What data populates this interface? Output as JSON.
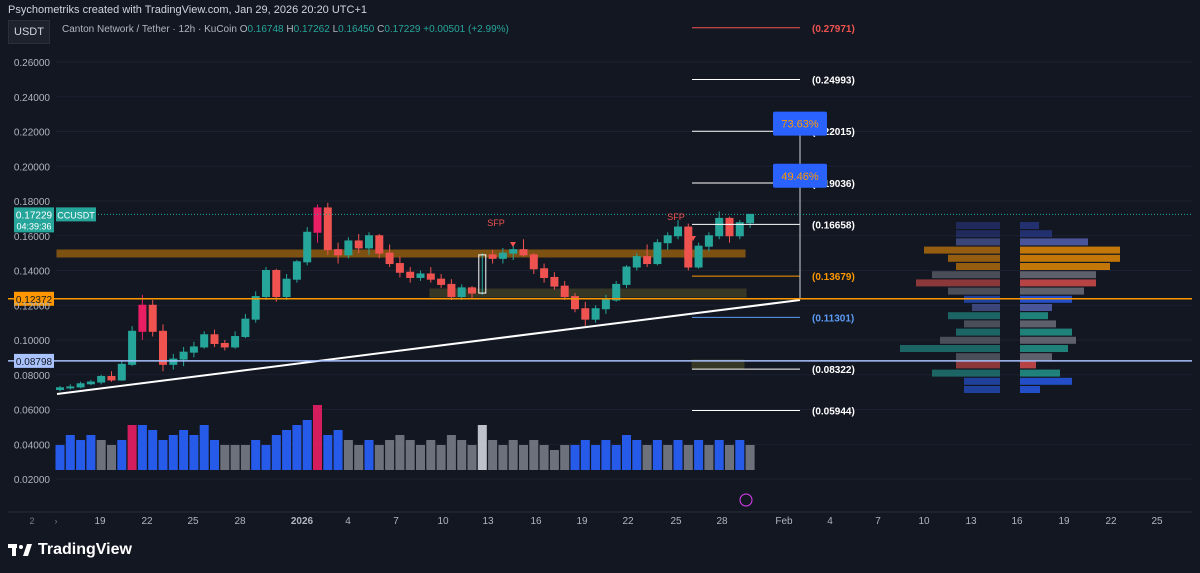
{
  "topbar": {
    "credit": "Psychometriks created with TradingView.com, Jan 29, 2026 20:20 UTC+1"
  },
  "symbol_tab": "USDT",
  "legend": {
    "name": "Canton Network / Tether · 12h · KuCoin",
    "o_label": "O",
    "o": "0.16748",
    "h_label": "H",
    "h": "0.17262",
    "l_label": "L",
    "l": "0.16450",
    "c_label": "C",
    "c": "0.17229",
    "change": "+0.00501 (+2.99%)"
  },
  "brand": "TradingView",
  "colors": {
    "up": "#26a69a",
    "down": "#ef5350",
    "volume_up": "#2962ff",
    "volume_down": "#787b86",
    "highlight": "#e91e63",
    "support": "#ff9800",
    "blue_line": "#a9c3ff"
  },
  "chart_data": {
    "type": "candlestick",
    "title": "",
    "ylim": [
      0.015,
      0.285
    ],
    "y_ticks": [
      "0.26000",
      "0.24000",
      "0.22000",
      "0.20000",
      "0.18000",
      "0.16000",
      "0.14000",
      "0.12000",
      "0.10000",
      "0.08000",
      "0.06000",
      "0.04000",
      "0.02000"
    ],
    "x_ticks": [
      "19",
      "22",
      "25",
      "28",
      "2026",
      "4",
      "7",
      "10",
      "13",
      "16",
      "19",
      "22",
      "25",
      "28",
      "Feb",
      "4",
      "7",
      "10",
      "13",
      "16",
      "19",
      "22",
      "25"
    ],
    "x_prefix": "2",
    "current_price": {
      "value": "0.17229",
      "symbol": "CCUSDT",
      "countdown": "04:39:36"
    },
    "price_levels": [
      {
        "value": "0.12372",
        "color": "#ff9800"
      },
      {
        "value": "0.08798",
        "color": "#a9c3ff"
      }
    ],
    "fib_levels": [
      {
        "label": "(0.27971)",
        "value": 0.27971,
        "color": "#ef5350"
      },
      {
        "label": "(0.24993)",
        "value": 0.24993,
        "color": "#ffffff"
      },
      {
        "label": "(0.22015)",
        "value": 0.22015,
        "color": "#ffffff"
      },
      {
        "label": "(0.19036)",
        "value": 0.19036,
        "color": "#ffffff"
      },
      {
        "label": "(0.16658)",
        "value": 0.16658,
        "color": "#ffffff"
      },
      {
        "label": "(0.13679)",
        "value": 0.13679,
        "color": "#ff9800"
      },
      {
        "label": "(0.11301)",
        "value": 0.11301,
        "color": "#5b9cf6"
      },
      {
        "label": "(0.08322)",
        "value": 0.08322,
        "color": "#ffffff"
      },
      {
        "label": "(0.05944)",
        "value": 0.05944,
        "color": "#ffffff"
      }
    ],
    "targets": [
      {
        "label": "73.63%",
        "value": 0.2245
      },
      {
        "label": "49.46%",
        "value": 0.1945
      }
    ],
    "annotations": [
      {
        "label": "SFP",
        "near_value": 0.158
      },
      {
        "label": "SFP",
        "near_value": 0.166
      }
    ],
    "candles": [
      [
        0.0715,
        0.0735,
        0.0705,
        0.0725
      ],
      [
        0.0725,
        0.0745,
        0.0715,
        0.073
      ],
      [
        0.073,
        0.076,
        0.0722,
        0.0748
      ],
      [
        0.0748,
        0.077,
        0.074,
        0.0758
      ],
      [
        0.0758,
        0.08,
        0.0745,
        0.079
      ],
      [
        0.079,
        0.082,
        0.076,
        0.077
      ],
      [
        0.077,
        0.088,
        0.0765,
        0.086
      ],
      [
        0.086,
        0.108,
        0.085,
        0.105
      ],
      [
        0.105,
        0.126,
        0.1,
        0.12
      ],
      [
        0.12,
        0.123,
        0.102,
        0.105
      ],
      [
        0.105,
        0.109,
        0.082,
        0.086
      ],
      [
        0.086,
        0.092,
        0.083,
        0.089
      ],
      [
        0.089,
        0.096,
        0.085,
        0.093
      ],
      [
        0.093,
        0.099,
        0.09,
        0.096
      ],
      [
        0.096,
        0.105,
        0.095,
        0.103
      ],
      [
        0.103,
        0.106,
        0.096,
        0.098
      ],
      [
        0.098,
        0.1,
        0.094,
        0.096
      ],
      [
        0.096,
        0.105,
        0.095,
        0.102
      ],
      [
        0.102,
        0.115,
        0.101,
        0.112
      ],
      [
        0.112,
        0.128,
        0.11,
        0.125
      ],
      [
        0.125,
        0.142,
        0.123,
        0.14
      ],
      [
        0.14,
        0.141,
        0.122,
        0.125
      ],
      [
        0.125,
        0.138,
        0.123,
        0.135
      ],
      [
        0.135,
        0.146,
        0.133,
        0.145
      ],
      [
        0.145,
        0.165,
        0.143,
        0.162
      ],
      [
        0.162,
        0.178,
        0.156,
        0.176
      ],
      [
        0.176,
        0.179,
        0.149,
        0.152
      ],
      [
        0.152,
        0.156,
        0.144,
        0.149
      ],
      [
        0.149,
        0.159,
        0.147,
        0.157
      ],
      [
        0.157,
        0.161,
        0.15,
        0.153
      ],
      [
        0.153,
        0.162,
        0.149,
        0.16
      ],
      [
        0.16,
        0.161,
        0.147,
        0.15
      ],
      [
        0.15,
        0.155,
        0.142,
        0.144
      ],
      [
        0.144,
        0.148,
        0.136,
        0.139
      ],
      [
        0.139,
        0.142,
        0.133,
        0.136
      ],
      [
        0.136,
        0.14,
        0.134,
        0.138
      ],
      [
        0.138,
        0.142,
        0.133,
        0.135
      ],
      [
        0.135,
        0.138,
        0.13,
        0.132
      ],
      [
        0.132,
        0.135,
        0.123,
        0.125
      ],
      [
        0.125,
        0.132,
        0.123,
        0.13
      ],
      [
        0.13,
        0.131,
        0.124,
        0.127
      ],
      [
        0.127,
        0.15,
        0.126,
        0.149
      ],
      [
        0.149,
        0.152,
        0.144,
        0.147
      ],
      [
        0.147,
        0.153,
        0.144,
        0.15
      ],
      [
        0.15,
        0.156,
        0.146,
        0.152
      ],
      [
        0.152,
        0.158,
        0.148,
        0.149
      ],
      [
        0.149,
        0.15,
        0.138,
        0.141
      ],
      [
        0.141,
        0.144,
        0.133,
        0.136
      ],
      [
        0.136,
        0.139,
        0.129,
        0.131
      ],
      [
        0.131,
        0.134,
        0.123,
        0.125
      ],
      [
        0.125,
        0.127,
        0.116,
        0.118
      ],
      [
        0.118,
        0.122,
        0.108,
        0.112
      ],
      [
        0.112,
        0.12,
        0.11,
        0.118
      ],
      [
        0.118,
        0.126,
        0.115,
        0.123
      ],
      [
        0.123,
        0.134,
        0.122,
        0.132
      ],
      [
        0.132,
        0.143,
        0.13,
        0.142
      ],
      [
        0.142,
        0.15,
        0.14,
        0.148
      ],
      [
        0.148,
        0.155,
        0.142,
        0.144
      ],
      [
        0.144,
        0.158,
        0.143,
        0.156
      ],
      [
        0.156,
        0.162,
        0.152,
        0.16
      ],
      [
        0.16,
        0.169,
        0.158,
        0.165
      ],
      [
        0.165,
        0.167,
        0.14,
        0.142
      ],
      [
        0.142,
        0.156,
        0.141,
        0.154
      ],
      [
        0.154,
        0.162,
        0.151,
        0.16
      ],
      [
        0.16,
        0.174,
        0.158,
        0.17
      ],
      [
        0.17,
        0.171,
        0.156,
        0.16
      ],
      [
        0.16,
        0.169,
        0.158,
        0.1675
      ],
      [
        0.1675,
        0.1726,
        0.1645,
        0.1723
      ]
    ],
    "volumes": [
      [
        0.5,
        1
      ],
      [
        0.7,
        1
      ],
      [
        0.6,
        1
      ],
      [
        0.7,
        1
      ],
      [
        0.6,
        0
      ],
      [
        0.5,
        0
      ],
      [
        0.6,
        1
      ],
      [
        0.9,
        2
      ],
      [
        0.9,
        1
      ],
      [
        0.8,
        1
      ],
      [
        0.6,
        1
      ],
      [
        0.7,
        1
      ],
      [
        0.8,
        1
      ],
      [
        0.7,
        1
      ],
      [
        0.9,
        1
      ],
      [
        0.6,
        1
      ],
      [
        0.5,
        0
      ],
      [
        0.5,
        0
      ],
      [
        0.5,
        0
      ],
      [
        0.6,
        1
      ],
      [
        0.5,
        1
      ],
      [
        0.7,
        1
      ],
      [
        0.8,
        1
      ],
      [
        0.9,
        1
      ],
      [
        1.0,
        1
      ],
      [
        1.3,
        2
      ],
      [
        0.7,
        1
      ],
      [
        0.8,
        1
      ],
      [
        0.6,
        0
      ],
      [
        0.5,
        0
      ],
      [
        0.6,
        1
      ],
      [
        0.5,
        0
      ],
      [
        0.6,
        0
      ],
      [
        0.7,
        0
      ],
      [
        0.6,
        0
      ],
      [
        0.5,
        0
      ],
      [
        0.6,
        0
      ],
      [
        0.5,
        0
      ],
      [
        0.7,
        0
      ],
      [
        0.6,
        0
      ],
      [
        0.5,
        0
      ],
      [
        0.9,
        3
      ],
      [
        0.6,
        0
      ],
      [
        0.5,
        0
      ],
      [
        0.6,
        0
      ],
      [
        0.5,
        0
      ],
      [
        0.6,
        0
      ],
      [
        0.5,
        0
      ],
      [
        0.4,
        0
      ],
      [
        0.5,
        0
      ],
      [
        0.5,
        1
      ],
      [
        0.6,
        1
      ],
      [
        0.5,
        1
      ],
      [
        0.6,
        1
      ],
      [
        0.5,
        1
      ],
      [
        0.7,
        1
      ],
      [
        0.6,
        1
      ],
      [
        0.5,
        0
      ],
      [
        0.6,
        1
      ],
      [
        0.5,
        0
      ],
      [
        0.6,
        1
      ],
      [
        0.5,
        0
      ],
      [
        0.6,
        1
      ],
      [
        0.5,
        0
      ],
      [
        0.6,
        1
      ],
      [
        0.5,
        0
      ],
      [
        0.6,
        1
      ],
      [
        0.5,
        0
      ]
    ]
  }
}
